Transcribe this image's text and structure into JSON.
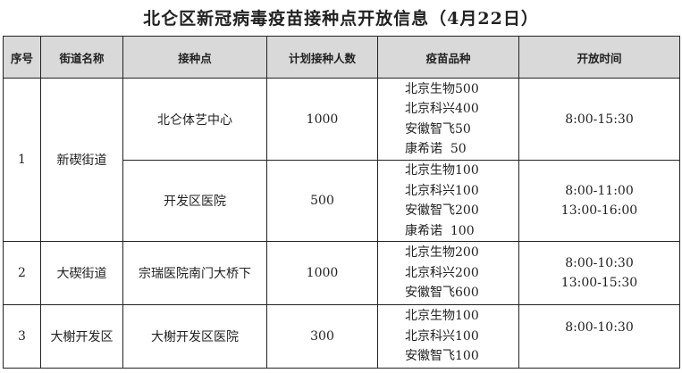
{
  "title": "北仑区新冠病毒疫苗接种点开放信息（4月22日）",
  "headers": [
    "序号",
    "街道名称",
    "接种点",
    "计划接种人数",
    "疫苗品种",
    "开放时间"
  ],
  "rows": [
    {
      "seq": "1",
      "street": "新碶街道",
      "site": "北仑体艺中心",
      "planned": "1000",
      "vaccines": [
        "北京生物500",
        "北京科兴400",
        "安徽智飞50",
        "康希诺  50"
      ],
      "hours": [
        "8:00-15:30"
      ]
    },
    {
      "site": "开发区医院",
      "planned": "500",
      "vaccines": [
        "北京生物100",
        "北京科兴100",
        "安徽智飞200",
        "康希诺  100"
      ],
      "hours": [
        "8:00-11:00",
        "13:00-16:00"
      ]
    },
    {
      "seq": "2",
      "street": "大碶街道",
      "site": "宗瑞医院南门大桥下",
      "planned": "1000",
      "vaccines": [
        "北京生物200",
        "北京科兴200",
        "安徽智飞600"
      ],
      "hours": [
        "8:00-10:30",
        "13:00-15:30"
      ]
    },
    {
      "seq": "3",
      "street": "大榭开发区",
      "site": "大榭开发区医院",
      "planned": "300",
      "vaccines": [
        "北京生物100",
        "北京科兴100",
        "安徽智飞100"
      ],
      "hours": [
        "8:00-10:30"
      ]
    }
  ]
}
